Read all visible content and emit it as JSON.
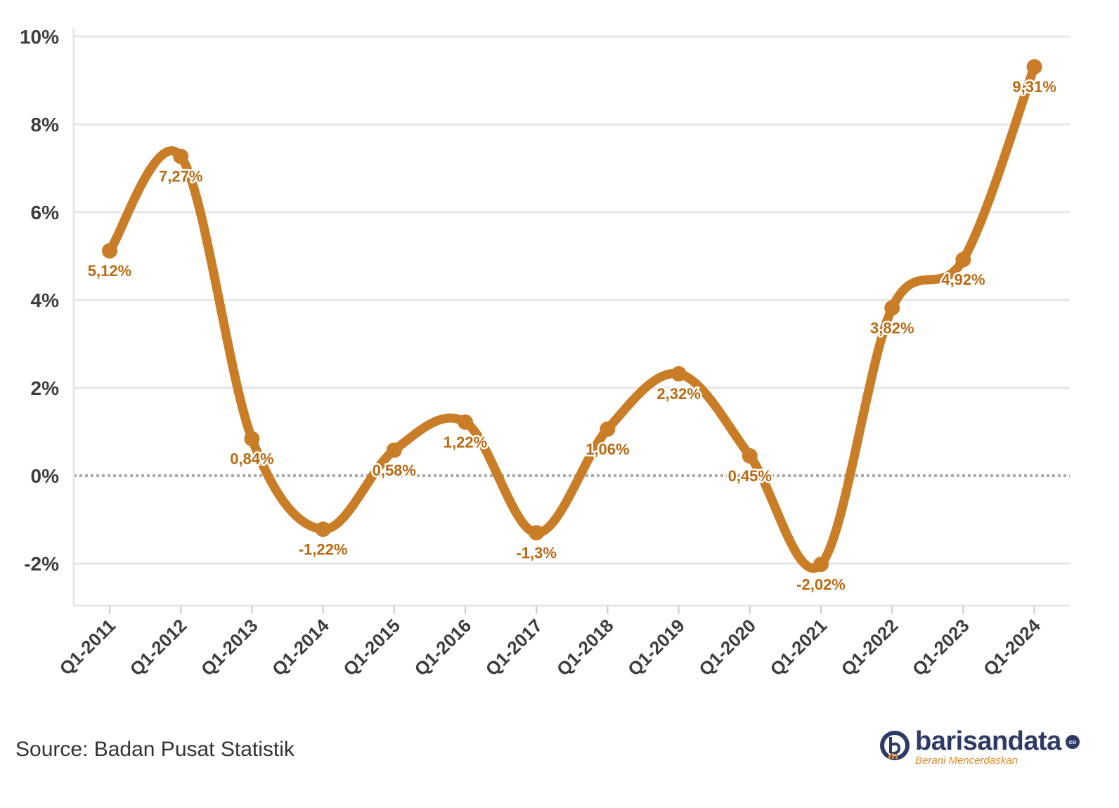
{
  "chart_data": {
    "type": "line",
    "categories": [
      "Q1-2011",
      "Q1-2012",
      "Q1-2013",
      "Q1-2014",
      "Q1-2015",
      "Q1-2016",
      "Q1-2017",
      "Q1-2018",
      "Q1-2019",
      "Q1-2020",
      "Q1-2021",
      "Q1-2022",
      "Q1-2023",
      "Q1-2024"
    ],
    "values": [
      5.12,
      7.27,
      0.84,
      -1.22,
      0.58,
      1.22,
      -1.3,
      1.06,
      2.32,
      0.45,
      -2.02,
      3.82,
      4.92,
      9.31
    ],
    "data_labels": [
      "5,12%",
      "7,27%",
      "0,84%",
      "-1,22%",
      "0,58%",
      "1,22%",
      "-1,3%",
      "1,06%",
      "2,32%",
      "0,45%",
      "-2,02%",
      "3,82%",
      "4,92%",
      "9,31%"
    ],
    "y_ticks": [
      -2,
      0,
      2,
      4,
      6,
      8,
      10
    ],
    "y_tick_labels": [
      "-2%",
      "0%",
      "2%",
      "4%",
      "6%",
      "8%",
      "10%"
    ],
    "ylim": [
      -3,
      10
    ],
    "grid": true,
    "zero_line": "dotted",
    "line_color": "#c97d27",
    "label_color": "#b96a12",
    "curve": "smooth"
  },
  "source": "Source: Badan Pusat Statistik",
  "logo": {
    "name": "barisandata",
    "suffix": "co",
    "tagline": "Berani Mencerdaskan",
    "color": "#2e3a66",
    "accent": "#e08a2a"
  }
}
